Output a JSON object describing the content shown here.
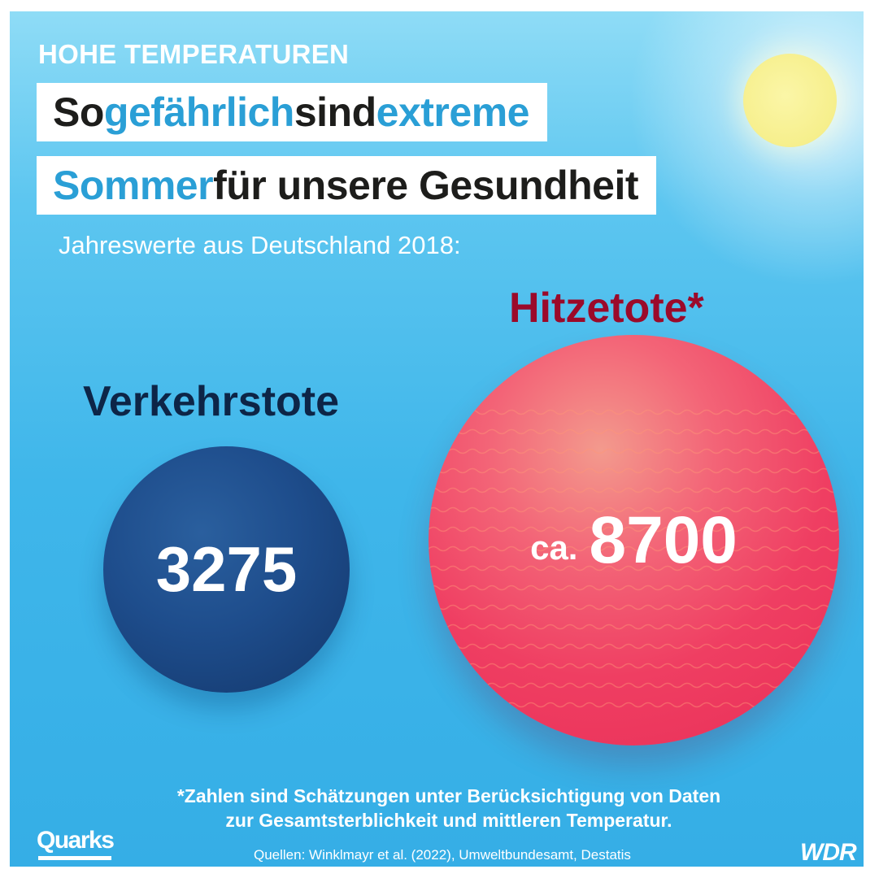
{
  "header": {
    "kicker": "HOHE TEMPERATUREN",
    "title_line1": {
      "part1": "So ",
      "part2": "gefährlich",
      "part3": " sind ",
      "part4": "extreme"
    },
    "title_line2": {
      "part1": "Sommer",
      "part2": " für unsere Gesundheit"
    },
    "subtitle": "Jahreswerte aus Deutschland 2018:"
  },
  "chart_data": {
    "type": "bubble",
    "title": "So gefährlich sind extreme Sommer für unsere Gesundheit",
    "subtitle": "Jahreswerte aus Deutschland 2018:",
    "categories": [
      "Verkehrstote",
      "Hitzetote*"
    ],
    "values": [
      3275,
      8700
    ],
    "value_labels": [
      "3275",
      "8700"
    ],
    "value_prefixes": [
      "",
      "ca."
    ],
    "colors": [
      "#1e4d8c",
      "#ef3e62"
    ]
  },
  "footnote": {
    "line1": "*Zahlen sind Schätzungen unter Berücksichtigung von Daten",
    "line2": "zur Gesamtsterblichkeit und mittleren Temperatur."
  },
  "sources": "Quellen: Winklmayr et al. (2022), Umweltbundesamt, Destatis",
  "logos": {
    "left": "Quarks",
    "right": "WDR"
  },
  "colors": {
    "accent": "#2a9fd6",
    "traffic": "#1e4d8c",
    "heat": "#ef3e62",
    "heat_label": "#9b0a2a",
    "traffic_label": "#0d2547"
  }
}
